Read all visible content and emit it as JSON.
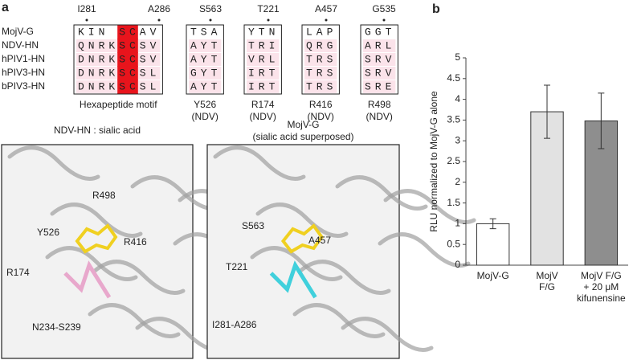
{
  "panel_a": {
    "label": "a",
    "positions": [
      "I281",
      "A286",
      "S563",
      "T221",
      "A457",
      "G535"
    ],
    "row_names": [
      "MojV-G",
      "NDV-HN",
      "hPIV1-HN",
      "hPIV3-HN",
      "bPIV3-HN"
    ],
    "blocks": [
      {
        "rows": [
          "KIN SCAV",
          "QNRKSCSV",
          "DNRKSCSV",
          "DNRKSCSL",
          "DNRKSCSL"
        ],
        "footer": [
          "Hexapeptide motif"
        ]
      },
      {
        "rows": [
          "TSA",
          "AYT",
          "AYT",
          "GYT",
          "AYT"
        ],
        "footer": [
          "Y526",
          "(NDV)"
        ]
      },
      {
        "rows": [
          "YTN",
          "TRI",
          "VRL",
          "IRT",
          "IRT"
        ],
        "footer": [
          "R174",
          "(NDV)"
        ]
      },
      {
        "rows": [
          "LAP",
          "QRG",
          "TRS",
          "TRS",
          "TRS"
        ],
        "footer": [
          "R416",
          "(NDV)"
        ]
      },
      {
        "rows": [
          "GGT",
          "ARL",
          "SRV",
          "SRV",
          "SRE"
        ],
        "footer": [
          "R498",
          "(NDV)"
        ]
      }
    ],
    "structures": [
      {
        "title": [
          "NDV-HN : sialic acid"
        ],
        "residues": [
          "R498",
          "Y526",
          "R416",
          "R174",
          "N234-S239"
        ]
      },
      {
        "title": [
          "MojV-G",
          "(sialic acid superposed)"
        ],
        "residues": [
          "S563",
          "A457",
          "T221",
          "I281-A286"
        ]
      }
    ]
  },
  "chart_data": {
    "type": "bar",
    "panel_label": "b",
    "y_label": "RLU normalized to MojV-G alone",
    "categories": [
      [
        "MojV-G"
      ],
      [
        "MojV",
        "F/G"
      ],
      [
        "MojV F/G",
        "+ 20 μM",
        "kifunensine"
      ]
    ],
    "values": [
      1.0,
      3.7,
      3.48
    ],
    "errors": [
      0.12,
      0.64,
      0.67
    ],
    "colors": [
      "#ffffff",
      "#e2e2e2",
      "#8e8e8e"
    ],
    "ylim": [
      0,
      5
    ],
    "yticks": [
      0,
      0.5,
      1,
      1.5,
      2,
      2.5,
      3,
      3.5,
      4,
      4.5,
      5
    ]
  }
}
